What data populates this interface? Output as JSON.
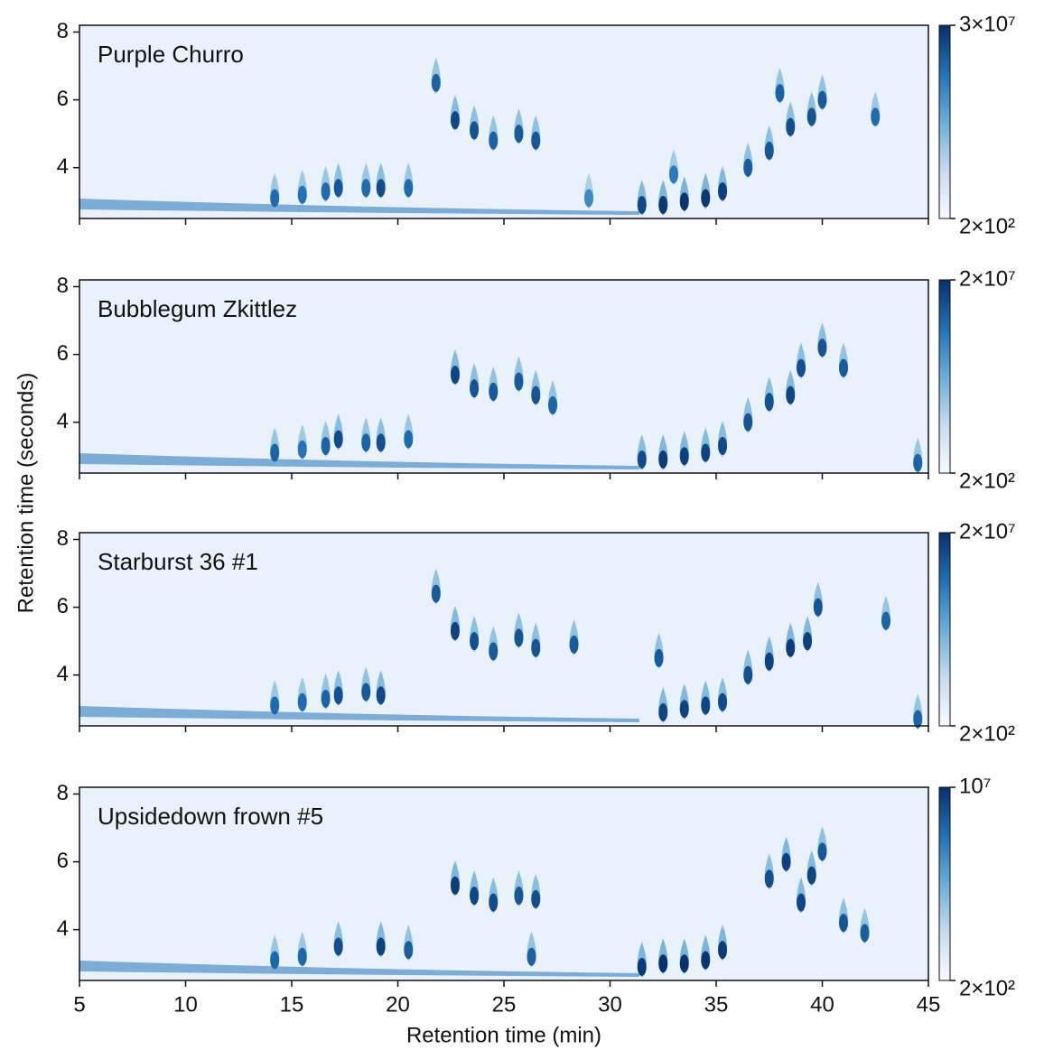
{
  "figure": {
    "xlabel": "Retention time (min)",
    "ylabel": "Retention time (seconds)",
    "cmap": [
      "#f7fbff",
      "#c6dbef",
      "#6baed6",
      "#2171b5",
      "#08306b"
    ]
  },
  "chart_data": [
    {
      "type": "heatmap",
      "title": "Purple Churro",
      "xlim": [
        5,
        45
      ],
      "ylim": [
        2.5,
        8.2
      ],
      "xticks": [
        5,
        10,
        15,
        20,
        25,
        30,
        35,
        40,
        45
      ],
      "yticks": [
        4,
        6,
        8
      ],
      "clim": [
        200,
        30000000
      ],
      "cticks": [
        {
          "value": 30000000,
          "label": "3×10⁷"
        },
        {
          "value": 200,
          "label": "2×10²"
        }
      ],
      "log_color": true,
      "x": [
        14.2,
        15.5,
        16.6,
        17.2,
        18.5,
        19.2,
        20.5,
        21.8,
        22.7,
        23.6,
        24.5,
        25.7,
        26.5,
        29.0,
        31.5,
        32.5,
        33.5,
        34.5,
        35.3,
        36.5,
        37.5,
        38.5,
        39.5,
        40.0,
        38.0,
        42.5,
        33.0
      ],
      "y": [
        3.1,
        3.2,
        3.3,
        3.4,
        3.4,
        3.4,
        3.4,
        6.5,
        5.4,
        5.1,
        4.8,
        5.0,
        4.8,
        3.1,
        2.9,
        2.9,
        3.0,
        3.1,
        3.3,
        4.0,
        4.5,
        5.2,
        5.5,
        6.0,
        6.2,
        5.5,
        3.8
      ],
      "z": [
        2000000,
        1500000,
        2000000,
        5000000,
        2000000,
        8000000,
        2000000,
        3000000,
        10000000,
        6000000,
        3000000,
        4000000,
        5000000,
        500000,
        10000000,
        20000000,
        25000000,
        20000000,
        15000000,
        4000000,
        5000000,
        8000000,
        6000000,
        4000000,
        3000000,
        2000000,
        1000000
      ]
    },
    {
      "type": "heatmap",
      "title": "Bubblegum Zkittlez",
      "xlim": [
        5,
        45
      ],
      "ylim": [
        2.5,
        8.2
      ],
      "xticks": [
        5,
        10,
        15,
        20,
        25,
        30,
        35,
        40,
        45
      ],
      "yticks": [
        4,
        6,
        8
      ],
      "clim": [
        200,
        20000000
      ],
      "cticks": [
        {
          "value": 20000000,
          "label": "2×10⁷"
        },
        {
          "value": 200,
          "label": "2×10²"
        }
      ],
      "log_color": true,
      "x": [
        14.2,
        15.5,
        16.6,
        17.2,
        18.5,
        19.2,
        20.5,
        22.7,
        23.6,
        24.5,
        25.7,
        26.5,
        27.3,
        31.5,
        32.5,
        33.5,
        34.5,
        35.3,
        36.5,
        37.5,
        38.5,
        39.0,
        40.0,
        41.0,
        44.5
      ],
      "y": [
        3.1,
        3.2,
        3.3,
        3.5,
        3.4,
        3.4,
        3.5,
        5.4,
        5.0,
        4.9,
        5.2,
        4.8,
        4.5,
        2.9,
        2.9,
        3.0,
        3.1,
        3.3,
        4.0,
        4.6,
        4.8,
        5.6,
        6.2,
        5.6,
        2.8
      ],
      "z": [
        2000000,
        1000000,
        2000000,
        6000000,
        2000000,
        5000000,
        1500000,
        8000000,
        4000000,
        3000000,
        3000000,
        4000000,
        2000000,
        6000000,
        12000000,
        10000000,
        8000000,
        7000000,
        4000000,
        5000000,
        8000000,
        5000000,
        4000000,
        3000000,
        2000000
      ]
    },
    {
      "type": "heatmap",
      "title": "Starburst 36 #1",
      "xlim": [
        5,
        45
      ],
      "ylim": [
        2.5,
        8.2
      ],
      "xticks": [
        5,
        10,
        15,
        20,
        25,
        30,
        35,
        40,
        45
      ],
      "yticks": [
        4,
        6,
        8
      ],
      "clim": [
        200,
        20000000
      ],
      "cticks": [
        {
          "value": 20000000,
          "label": "2×10⁷"
        },
        {
          "value": 200,
          "label": "2×10²"
        }
      ],
      "log_color": true,
      "x": [
        14.2,
        15.5,
        16.6,
        17.2,
        18.5,
        19.2,
        21.8,
        22.7,
        23.6,
        24.5,
        25.7,
        26.5,
        28.3,
        32.3,
        32.5,
        33.5,
        34.5,
        35.3,
        36.5,
        37.5,
        38.5,
        39.3,
        39.8,
        43.0,
        44.5
      ],
      "y": [
        3.1,
        3.2,
        3.3,
        3.4,
        3.5,
        3.4,
        6.4,
        5.3,
        5.0,
        4.7,
        5.1,
        4.8,
        4.9,
        4.5,
        2.9,
        3.0,
        3.1,
        3.2,
        4.0,
        4.4,
        4.8,
        5.0,
        6.0,
        5.6,
        2.7
      ],
      "z": [
        1500000,
        1500000,
        2000000,
        5000000,
        3000000,
        7000000,
        3000000,
        9000000,
        5000000,
        3000000,
        4000000,
        4000000,
        3000000,
        3000000,
        8000000,
        9000000,
        8000000,
        6000000,
        5000000,
        9000000,
        12000000,
        10000000,
        4000000,
        2000000,
        2000000
      ]
    },
    {
      "type": "heatmap",
      "title": "Upsidedown frown #5",
      "xlim": [
        5,
        45
      ],
      "ylim": [
        2.5,
        8.2
      ],
      "xticks": [
        5,
        10,
        15,
        20,
        25,
        30,
        35,
        40,
        45
      ],
      "yticks": [
        4,
        6,
        8
      ],
      "xlabel_shown": true,
      "clim": [
        200,
        10000000
      ],
      "cticks": [
        {
          "value": 10000000,
          "label": "10⁷"
        },
        {
          "value": 200,
          "label": "2×10²"
        }
      ],
      "log_color": true,
      "x": [
        14.2,
        15.5,
        17.2,
        19.2,
        20.5,
        22.7,
        23.6,
        24.5,
        25.7,
        26.5,
        26.3,
        31.5,
        32.5,
        33.5,
        34.5,
        35.3,
        37.5,
        38.3,
        39.0,
        39.5,
        40.0,
        41.0,
        42.0
      ],
      "y": [
        3.1,
        3.2,
        3.5,
        3.5,
        3.4,
        5.3,
        5.0,
        4.8,
        5.0,
        4.9,
        3.2,
        2.9,
        3.0,
        3.0,
        3.1,
        3.4,
        5.5,
        6.0,
        4.8,
        5.6,
        6.3,
        4.2,
        3.9
      ],
      "z": [
        1000000,
        1000000,
        3000000,
        5000000,
        1500000,
        6000000,
        4000000,
        3000000,
        2000000,
        3000000,
        1500000,
        7000000,
        9000000,
        9000000,
        8000000,
        6000000,
        3000000,
        5000000,
        4000000,
        4000000,
        2000000,
        2000000,
        1500000
      ]
    }
  ]
}
